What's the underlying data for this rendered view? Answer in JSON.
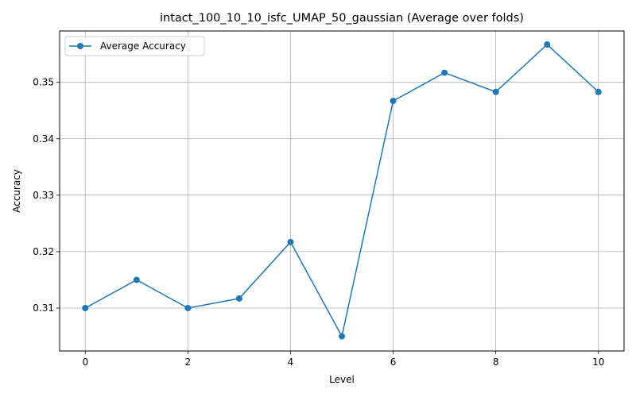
{
  "chart_data": {
    "type": "line",
    "title": "intact_100_10_10_isfc_UMAP_50_gaussian (Average over folds)",
    "xlabel": "Level",
    "ylabel": "Accuracy",
    "x": [
      0,
      1,
      2,
      3,
      4,
      5,
      6,
      7,
      8,
      9,
      10
    ],
    "series": [
      {
        "name": "Average Accuracy",
        "values": [
          0.31,
          0.315,
          0.31,
          0.3117,
          0.3217,
          0.305,
          0.3467,
          0.3517,
          0.3483,
          0.3567,
          0.3483
        ],
        "color": "#1f77b4",
        "marker": "circle"
      }
    ],
    "xlim": [
      -0.5,
      10.5
    ],
    "ylim": [
      0.3024,
      0.3591
    ],
    "xticks": [
      0,
      2,
      4,
      6,
      8,
      10
    ],
    "xtick_labels": [
      "0",
      "2",
      "4",
      "6",
      "8",
      "10"
    ],
    "yticks": [
      0.31,
      0.32,
      0.33,
      0.34,
      0.35
    ],
    "ytick_labels": [
      "0.31",
      "0.32",
      "0.33",
      "0.34",
      "0.35"
    ],
    "grid": true,
    "legend_position": "top-left"
  }
}
